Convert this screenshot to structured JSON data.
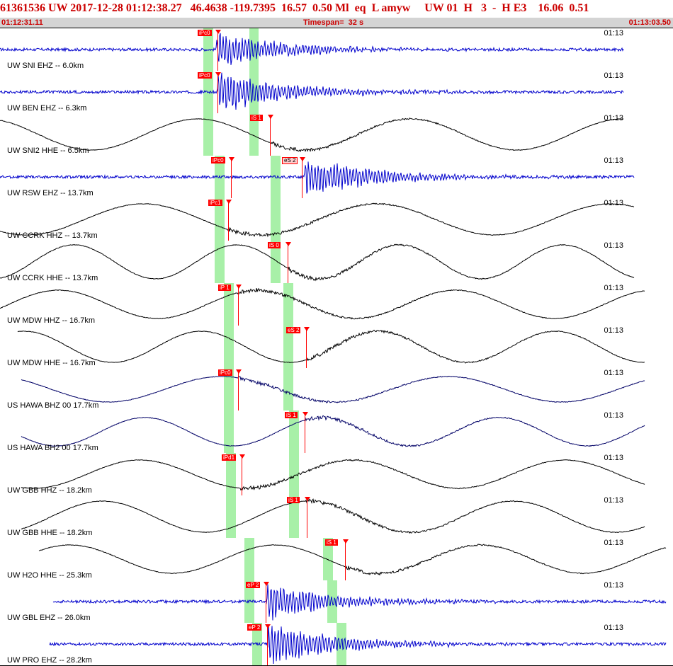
{
  "header": {
    "title": "61361536 UW 2017-12-28 01:12:38.27   46.4638 -119.7395  16.57  0.50 Ml  eq  L amyw     UW 01  H   3  -  H E3    16.06  0.51",
    "start_time": "01:12:31.11",
    "timespan": "Timespan=  32 s",
    "end_time": "01:13:03.50"
  },
  "colors": {
    "header_text": "#cc0000",
    "pick": "#ff0000",
    "window": "#a8f0a8",
    "trace_blue": "#0000cc",
    "trace_black": "#000000"
  },
  "panels": [
    {
      "label": "UW SNI EHZ -- 6.0km",
      "time": "01:13",
      "color": "#0000cc",
      "type": "hf",
      "picks": [
        {
          "label": "iPc0",
          "style": "red"
        }
      ]
    },
    {
      "label": "UW BEN EHZ -- 6.3km",
      "time": "01:13",
      "color": "#0000cc",
      "type": "hf",
      "picks": [
        {
          "label": "iPc0",
          "style": "red"
        }
      ]
    },
    {
      "label": "UW SNI2 HHE -- 6.5km",
      "time": "01:13",
      "color": "#000000",
      "type": "lf",
      "picks": [
        {
          "label": "iS 1",
          "style": "red"
        }
      ]
    },
    {
      "label": "UW RSW EHZ -- 13.7km",
      "time": "01:13",
      "color": "#0000cc",
      "type": "hf",
      "picks": [
        {
          "label": "iPc0",
          "style": "red"
        },
        {
          "label": "eS 2",
          "style": "outline"
        }
      ]
    },
    {
      "label": "UW CCRK HHZ -- 13.7km",
      "time": "01:13",
      "color": "#000000",
      "type": "lf",
      "picks": [
        {
          "label": "iPc1",
          "style": "red"
        }
      ]
    },
    {
      "label": "UW CCRK HHE -- 13.7km",
      "time": "01:13",
      "color": "#000000",
      "type": "lf",
      "picks": [
        {
          "label": "iS 0",
          "style": "red"
        }
      ]
    },
    {
      "label": "UW MDW HHZ -- 16.7km",
      "time": "01:13",
      "color": "#000000",
      "type": "lf",
      "picks": [
        {
          "label": "iP 1",
          "style": "red"
        }
      ]
    },
    {
      "label": "UW MDW HHE -- 16.7km",
      "time": "01:13",
      "color": "#000000",
      "type": "lf",
      "picks": [
        {
          "label": "eS 2",
          "style": "red"
        }
      ]
    },
    {
      "label": "US HAWA BHZ 00 17.7km",
      "time": "01:13",
      "color": "#000066",
      "type": "lf",
      "picks": [
        {
          "label": "iPc0",
          "style": "red"
        }
      ]
    },
    {
      "label": "US HAWA BH2 00 17.7km",
      "time": "01:13",
      "color": "#000066",
      "type": "lf",
      "picks": [
        {
          "label": "iS 1",
          "style": "red"
        }
      ]
    },
    {
      "label": "UW GBB HHZ -- 18.2km",
      "time": "01:13",
      "color": "#000000",
      "type": "lf",
      "picks": [
        {
          "label": "iPd1",
          "style": "red"
        }
      ]
    },
    {
      "label": "UW GBB HHE -- 18.2km",
      "time": "01:13",
      "color": "#000000",
      "type": "lf",
      "picks": [
        {
          "label": "iS 1",
          "style": "red"
        }
      ]
    },
    {
      "label": "UW H2O HHE -- 25.3km",
      "time": "01:13",
      "color": "#000000",
      "type": "lf",
      "picks": [
        {
          "label": "iS 1",
          "style": "red"
        }
      ]
    },
    {
      "label": "UW GBL EHZ -- 26.0km",
      "time": "01:13",
      "color": "#0000cc",
      "type": "hf",
      "picks": [
        {
          "label": "eP 2",
          "style": "red"
        }
      ]
    },
    {
      "label": "UW PRO EHZ -- 28.2km",
      "time": "01:13",
      "color": "#0000cc",
      "type": "hf",
      "picks": [
        {
          "label": "eP 2",
          "style": "red"
        }
      ]
    }
  ]
}
